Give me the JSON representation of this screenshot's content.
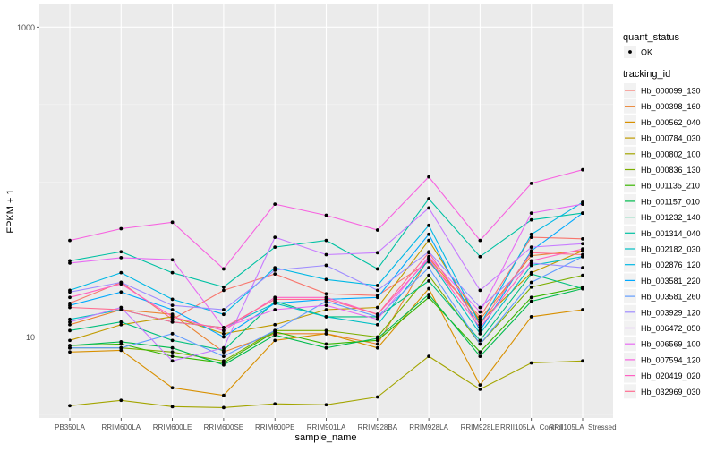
{
  "chart_data": {
    "type": "line",
    "xlabel": "sample_name",
    "ylabel": "FPKM + 1",
    "y_scale": "log10",
    "ylim": [
      3.0,
      1400
    ],
    "y_ticks": [
      {
        "value": 10,
        "label": "10"
      },
      {
        "value": 1000,
        "label": "1000"
      }
    ],
    "grid": true,
    "legend_position": "right",
    "colors": {
      "panel": "#EBEBEB",
      "grid_major": "#FFFFFF",
      "grid_minor": "#F5F5F5",
      "point": "#000000"
    },
    "categories": [
      "PB350LA",
      "RRIM600LA",
      "RRIM600LE",
      "RRIM600SE",
      "RRIM600PE",
      "RRIM901LA",
      "RRIM928BA",
      "RRIM928LA",
      "RRIM928LE",
      "RRII105LA_Control",
      "RRII105LA_Stressed"
    ],
    "legend_shape": {
      "title": "quant_status",
      "entries": [
        "OK"
      ]
    },
    "legend_color": {
      "title": "tracking_id"
    },
    "series": [
      {
        "name": "Hb_000099_130",
        "color": "#F8766D",
        "values": [
          16.5,
          22.5,
          13.0,
          20.0,
          25.5,
          19.0,
          18.5,
          30.5,
          13.5,
          44.0,
          43.0
        ]
      },
      {
        "name": "Hb_000398_160",
        "color": "#EA8331",
        "values": [
          12.0,
          15.0,
          14.0,
          8.0,
          10.5,
          10.5,
          9.0,
          32.5,
          13.0,
          33.5,
          36.0
        ]
      },
      {
        "name": "Hb_000562_040",
        "color": "#D89000",
        "values": [
          8.0,
          8.2,
          4.7,
          4.2,
          9.5,
          10.5,
          8.5,
          20.5,
          4.9,
          13.5,
          15.0
        ]
      },
      {
        "name": "Hb_000784_030",
        "color": "#C09B00",
        "values": [
          9.5,
          12.0,
          13.5,
          10.5,
          12.0,
          15.0,
          15.5,
          42.0,
          12.5,
          26.0,
          36.0
        ]
      },
      {
        "name": "Hb_000802_100",
        "color": "#A3A500",
        "values": [
          3.6,
          3.9,
          3.55,
          3.5,
          3.7,
          3.65,
          4.1,
          7.5,
          4.6,
          6.8,
          7.0
        ]
      },
      {
        "name": "Hb_000836_130",
        "color": "#7CAE00",
        "values": [
          8.5,
          8.5,
          8.0,
          7.0,
          11.0,
          11.0,
          10.0,
          25.0,
          9.0,
          21.0,
          25.0
        ]
      },
      {
        "name": "Hb_001135_210",
        "color": "#39B600",
        "values": [
          8.8,
          9.0,
          7.5,
          6.8,
          10.8,
          9.0,
          9.5,
          18.0,
          8.0,
          18.0,
          21.0
        ]
      },
      {
        "name": "Hb_001157_010",
        "color": "#00BB4E",
        "values": [
          8.8,
          9.3,
          8.5,
          6.6,
          10.3,
          8.5,
          9.8,
          18.8,
          7.5,
          17.0,
          20.5
        ]
      },
      {
        "name": "Hb_001232_140",
        "color": "#00BF7D",
        "values": [
          11.0,
          12.5,
          9.5,
          8.2,
          17.0,
          13.5,
          13.5,
          23.0,
          9.5,
          25.5,
          20.5
        ]
      },
      {
        "name": "Hb_001314_040",
        "color": "#00C1A3",
        "values": [
          31.0,
          35.5,
          26.0,
          21.0,
          38.0,
          42.0,
          27.5,
          78.0,
          33.0,
          57.0,
          63.0
        ]
      },
      {
        "name": "Hb_002182_030",
        "color": "#00BFC4",
        "values": [
          13.0,
          15.0,
          12.5,
          11.5,
          16.5,
          13.5,
          12.0,
          31.5,
          10.5,
          29.0,
          33.0
        ]
      },
      {
        "name": "Hb_002876_120",
        "color": "#00B8E5",
        "values": [
          20.0,
          26.0,
          17.5,
          14.0,
          28.0,
          23.5,
          21.5,
          52.5,
          12.0,
          46.0,
          74.0
        ]
      },
      {
        "name": "Hb_003581_220",
        "color": "#00A9FF",
        "values": [
          16.0,
          19.5,
          15.0,
          10.0,
          16.5,
          17.5,
          18.0,
          46.0,
          11.0,
          36.0,
          63.0
        ]
      },
      {
        "name": "Hb_003581_260",
        "color": "#619CFF",
        "values": [
          8.5,
          8.5,
          10.5,
          7.5,
          11.0,
          17.0,
          13.5,
          28.0,
          9.0,
          22.5,
          33.0
        ]
      },
      {
        "name": "Hb_003929_120",
        "color": "#9F8CFF",
        "values": [
          19.5,
          22.5,
          16.0,
          15.0,
          27.0,
          29.0,
          20.0,
          35.5,
          15.5,
          30.0,
          28.0
        ]
      },
      {
        "name": "Hb_006472_050",
        "color": "#C77CFF",
        "values": [
          12.5,
          15.5,
          7.0,
          8.5,
          44.0,
          34.0,
          35.0,
          68.0,
          20.0,
          38.0,
          40.0
        ]
      },
      {
        "name": "Hb_006569_100",
        "color": "#E76BF3",
        "values": [
          30.0,
          32.5,
          31.5,
          11.5,
          15.0,
          16.0,
          13.0,
          33.0,
          14.5,
          63.0,
          72.0
        ]
      },
      {
        "name": "Hb_007594_120",
        "color": "#F763E0",
        "values": [
          42.0,
          50.0,
          55.0,
          27.5,
          72.0,
          61.0,
          49.0,
          108.0,
          42.0,
          98.0,
          120.0
        ]
      },
      {
        "name": "Hb_020419_020",
        "color": "#FF61C3",
        "values": [
          18.0,
          22.0,
          13.5,
          11.0,
          18.0,
          18.0,
          14.0,
          32.0,
          11.5,
          31.0,
          37.0
        ]
      },
      {
        "name": "Hb_032969_030",
        "color": "#FF6C91",
        "values": [
          15.5,
          15.0,
          12.5,
          11.5,
          17.5,
          17.5,
          14.0,
          35.0,
          12.0,
          35.0,
          34.0
        ]
      }
    ]
  }
}
